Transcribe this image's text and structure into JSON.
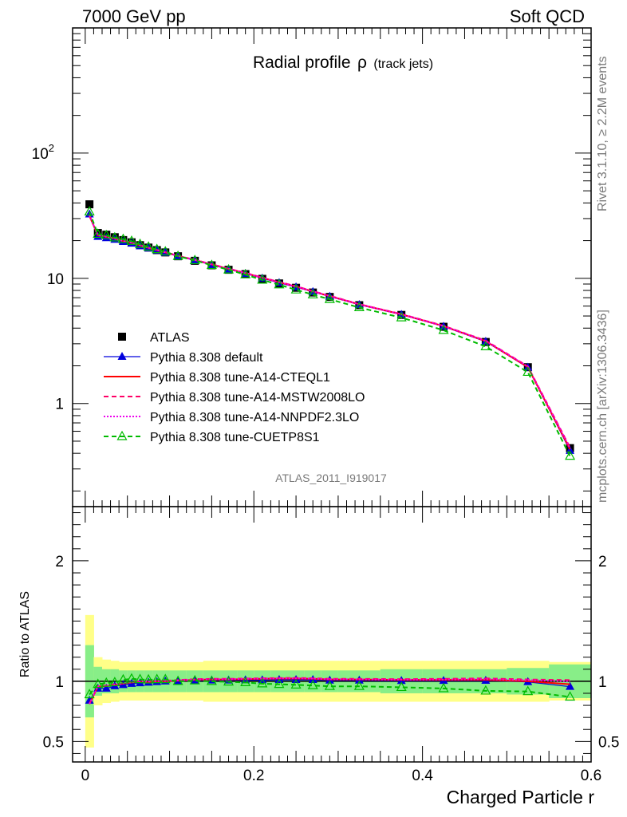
{
  "header": {
    "left": "7000 GeV pp",
    "right": "Soft QCD"
  },
  "side": {
    "rivet": "Rivet 3.1.10, ≥ 2.2M events",
    "mcplots": "mcplots.cern.ch [arXiv:1306.3436]"
  },
  "chart_data": [
    {
      "type": "line",
      "title_main": "Radial profile",
      "title_rho": "ρ",
      "title_sub": "(track jets)",
      "analysis_label": "ATLAS_2011_I919017",
      "xlabel": "Charged Particle r",
      "ylabel": "",
      "yscale": "log",
      "xlim": [
        -0.015,
        0.6
      ],
      "ylim": [
        0.15,
        1000
      ],
      "y_ticks": [
        {
          "value": 100,
          "base": "10",
          "exp": "2"
        },
        {
          "value": 10,
          "base": "10",
          "exp": ""
        },
        {
          "value": 1,
          "base": "1",
          "exp": ""
        }
      ],
      "legend_position": "middle-left",
      "x": [
        0.005,
        0.015,
        0.025,
        0.035,
        0.045,
        0.055,
        0.065,
        0.075,
        0.085,
        0.095,
        0.11,
        0.13,
        0.15,
        0.17,
        0.19,
        0.21,
        0.23,
        0.25,
        0.27,
        0.29,
        0.325,
        0.375,
        0.425,
        0.475,
        0.525,
        0.575
      ],
      "series": [
        {
          "name": "ATLAS",
          "color": "#000000",
          "style": "data",
          "marker": "square",
          "values": [
            39,
            23.0,
            22.3,
            21.3,
            20.2,
            19.4,
            18.4,
            17.6,
            16.8,
            16.1,
            15.0,
            13.8,
            12.7,
            11.7,
            10.8,
            9.9,
            9.1,
            8.4,
            7.7,
            7.1,
            6.1,
            5.1,
            4.1,
            3.1,
            1.95,
            0.44
          ]
        },
        {
          "name": "Pythia 8.308 default",
          "color": "#0000dd",
          "style": "solid",
          "marker": "triangle-filled",
          "values": [
            32.5,
            21.5,
            21.0,
            20.4,
            19.6,
            19.0,
            18.1,
            17.4,
            16.7,
            16.0,
            15.0,
            13.9,
            12.8,
            11.8,
            10.9,
            10.0,
            9.2,
            8.5,
            7.8,
            7.15,
            6.15,
            5.12,
            4.12,
            3.12,
            1.94,
            0.42
          ]
        },
        {
          "name": "Pythia 8.308 tune-A14-CTEQL1",
          "color": "#ff0000",
          "style": "solid",
          "marker": "none",
          "values": [
            31.5,
            22.0,
            21.5,
            20.7,
            19.8,
            19.2,
            18.3,
            17.5,
            16.8,
            16.1,
            15.1,
            14.0,
            12.9,
            11.9,
            11.0,
            10.1,
            9.3,
            8.6,
            7.85,
            7.2,
            6.2,
            5.15,
            4.15,
            3.15,
            1.95,
            0.43
          ]
        },
        {
          "name": "Pythia 8.308 tune-A14-MSTW2008LO",
          "color": "#ff0066",
          "style": "dashed",
          "marker": "none",
          "values": [
            31.8,
            22.1,
            21.6,
            20.8,
            19.9,
            19.3,
            18.4,
            17.6,
            16.9,
            16.2,
            15.15,
            14.05,
            12.95,
            11.95,
            11.05,
            10.15,
            9.35,
            8.65,
            7.9,
            7.25,
            6.22,
            5.18,
            4.18,
            3.18,
            1.98,
            0.445
          ]
        },
        {
          "name": "Pythia 8.308 tune-A14-NNPDF2.3LO",
          "color": "#ee00ee",
          "style": "dotted",
          "marker": "none",
          "values": [
            31.6,
            22.0,
            21.5,
            20.7,
            19.85,
            19.25,
            18.35,
            17.55,
            16.85,
            16.15,
            15.1,
            14.0,
            12.9,
            11.9,
            11.0,
            10.1,
            9.3,
            8.6,
            7.88,
            7.22,
            6.2,
            5.16,
            4.16,
            3.16,
            1.97,
            0.44
          ]
        },
        {
          "name": "Pythia 8.308 tune-CUETP8S1",
          "color": "#00bb00",
          "style": "dashed",
          "marker": "triangle-open",
          "values": [
            34.0,
            22.5,
            22.0,
            21.1,
            20.5,
            19.8,
            18.7,
            17.8,
            17.0,
            16.3,
            15.0,
            13.9,
            12.7,
            11.7,
            10.7,
            9.7,
            8.9,
            8.1,
            7.4,
            6.8,
            5.85,
            4.85,
            3.85,
            2.85,
            1.78,
            0.38
          ]
        }
      ]
    },
    {
      "type": "line",
      "ylabel": "Ratio to ATLAS",
      "xlabel": "Charged Particle r",
      "xlim": [
        -0.015,
        0.6
      ],
      "ylim": [
        0.33,
        2.45
      ],
      "y_ticks": [
        0.5,
        1,
        2
      ],
      "x_ticks": [
        0,
        0.2,
        0.4,
        0.6
      ],
      "x": [
        0.005,
        0.015,
        0.025,
        0.035,
        0.045,
        0.055,
        0.065,
        0.075,
        0.085,
        0.095,
        0.11,
        0.13,
        0.15,
        0.17,
        0.19,
        0.21,
        0.23,
        0.25,
        0.27,
        0.29,
        0.325,
        0.375,
        0.425,
        0.475,
        0.525,
        0.575
      ],
      "bin_edges": [
        0,
        0.01,
        0.02,
        0.03,
        0.04,
        0.05,
        0.06,
        0.07,
        0.08,
        0.09,
        0.1,
        0.12,
        0.14,
        0.16,
        0.18,
        0.2,
        0.22,
        0.24,
        0.26,
        0.28,
        0.3,
        0.35,
        0.4,
        0.45,
        0.5,
        0.55,
        0.6
      ],
      "band_inner": [
        0.3,
        0.12,
        0.1,
        0.1,
        0.09,
        0.09,
        0.09,
        0.09,
        0.09,
        0.09,
        0.09,
        0.09,
        0.09,
        0.09,
        0.09,
        0.09,
        0.09,
        0.09,
        0.09,
        0.09,
        0.09,
        0.1,
        0.1,
        0.1,
        0.11,
        0.14
      ],
      "band_outer": [
        0.55,
        0.2,
        0.18,
        0.17,
        0.16,
        0.16,
        0.16,
        0.16,
        0.16,
        0.16,
        0.16,
        0.16,
        0.17,
        0.17,
        0.17,
        0.17,
        0.17,
        0.17,
        0.17,
        0.17,
        0.17,
        0.17,
        0.17,
        0.17,
        0.17,
        0.16
      ],
      "band_colors": {
        "inner": "#88ee88",
        "outer": "#ffff88"
      },
      "series": [
        {
          "name": "Pythia 8.308 default",
          "color": "#0000dd",
          "style": "solid",
          "marker": "triangle-filled",
          "values": [
            0.84,
            0.94,
            0.94,
            0.96,
            0.97,
            0.98,
            0.985,
            0.99,
            0.995,
            1.0,
            1.0,
            1.005,
            1.008,
            1.008,
            1.01,
            1.01,
            1.012,
            1.012,
            1.012,
            1.007,
            1.007,
            1.004,
            1.005,
            1.006,
            0.995,
            0.955
          ]
        },
        {
          "name": "Pythia 8.308 tune-A14-CTEQL1",
          "color": "#ff0000",
          "style": "solid",
          "marker": "none",
          "values": [
            0.81,
            0.955,
            0.96,
            0.97,
            0.98,
            0.99,
            0.995,
            0.995,
            1.0,
            1.0,
            1.005,
            1.012,
            1.015,
            1.015,
            1.018,
            1.02,
            1.022,
            1.023,
            1.02,
            1.015,
            1.015,
            1.012,
            1.012,
            1.012,
            1.0,
            0.975
          ]
        },
        {
          "name": "Pythia 8.308 tune-A14-MSTW2008LO",
          "color": "#ff0066",
          "style": "dashed",
          "marker": "none",
          "values": [
            0.815,
            0.96,
            0.965,
            0.975,
            0.985,
            0.995,
            1.0,
            1.0,
            1.005,
            1.005,
            1.01,
            1.018,
            1.02,
            1.02,
            1.022,
            1.025,
            1.027,
            1.028,
            1.025,
            1.02,
            1.02,
            1.018,
            1.02,
            1.024,
            1.015,
            1.01
          ]
        },
        {
          "name": "Pythia 8.308 tune-A14-NNPDF2.3LO",
          "color": "#ee00ee",
          "style": "dotted",
          "marker": "none",
          "values": [
            0.812,
            0.958,
            0.962,
            0.972,
            0.982,
            0.992,
            0.998,
            0.998,
            1.002,
            1.003,
            1.007,
            1.015,
            1.017,
            1.017,
            1.02,
            1.022,
            1.024,
            1.025,
            1.022,
            1.017,
            1.016,
            1.014,
            1.015,
            1.018,
            1.01,
            1.0
          ]
        },
        {
          "name": "Pythia 8.308 tune-CUETP8S1",
          "color": "#00bb00",
          "style": "dashed",
          "marker": "triangle-open",
          "values": [
            0.89,
            0.975,
            0.985,
            0.99,
            1.012,
            1.02,
            1.015,
            1.012,
            1.015,
            1.015,
            1.0,
            1.005,
            1.0,
            0.995,
            0.99,
            0.98,
            0.975,
            0.97,
            0.965,
            0.958,
            0.958,
            0.95,
            0.94,
            0.92,
            0.915,
            0.87
          ]
        }
      ]
    }
  ]
}
